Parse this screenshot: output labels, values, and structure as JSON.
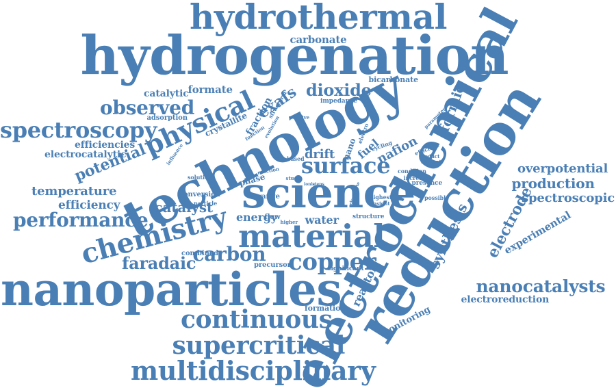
{
  "style": {
    "word_color": "#4a7fb5",
    "background_color": "#ffffff"
  },
  "words": [
    "hydrothermal",
    "hydrogenation",
    "reduction",
    "electrochemical",
    "technology",
    "science",
    "nanoparticles",
    "electrode",
    "chemistry",
    "material",
    "physical",
    "continuous",
    "supercritical",
    "multidisciplinary",
    "spectroscopy",
    "surface",
    "copper",
    "performance",
    "carbon",
    "observed",
    "nanocatalysts",
    "dioxide",
    "faradaic",
    "potential",
    "temperature",
    "efficiency",
    "catalyst",
    "exafs",
    "formic",
    "synthesis",
    "production",
    "overpotential",
    "spectroscopic",
    "carbonate",
    "experimental",
    "efficiencies",
    "electrocatalytic",
    "formate",
    "catalytic",
    "electroreduction",
    "nafion",
    "fuel",
    "reactor",
    "drift",
    "energy",
    "water",
    "monitoring",
    "fraction",
    "crystallite",
    "adsorption",
    "bicarbonate",
    "impedance",
    "formation",
    "precursor",
    "combined",
    "significant",
    "structure",
    "conversion",
    "flow",
    "nano",
    "range",
    "phase",
    "solution",
    "particle",
    "influence",
    "function",
    "evolution",
    "structural",
    "positive",
    "based",
    "study",
    "reaction",
    "higher",
    "cycling",
    "electro",
    "highest",
    "insight",
    "condition",
    "increase",
    "presence",
    "possible",
    "content",
    "product",
    "efficient",
    "parameter",
    "steps",
    "ionic",
    "electrolyte"
  ]
}
